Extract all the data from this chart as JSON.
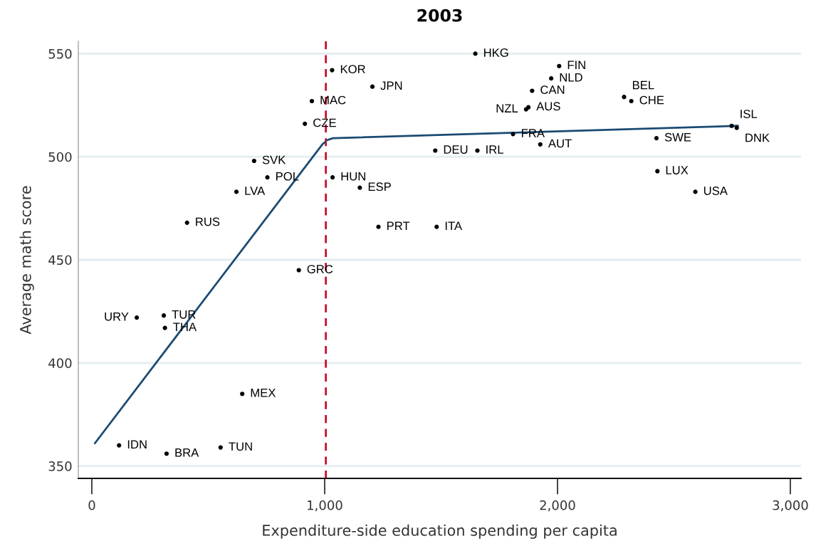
{
  "chart_data": {
    "type": "scatter",
    "title": "2003",
    "xlabel": "Expenditure-side education spending per capita",
    "ylabel": "Average math score",
    "series": [
      {
        "color": "#000000",
        "marker": "circle",
        "x": [
          1647,
          1032,
          2007,
          1973,
          1205,
          1891,
          2286,
          945,
          2317,
          1875,
          1865,
          915,
          2748,
          2770,
          1809,
          2425,
          1926,
          1475,
          1656,
          697,
          2429,
          754,
          1034,
          1151,
          621,
          2592,
          409,
          1231,
          1481,
          889,
          309,
          193,
          314,
          646,
          117,
          553,
          321
        ],
        "values": [
          550,
          542,
          544,
          538,
          534,
          532,
          529,
          527,
          527,
          524,
          523,
          516,
          515,
          514,
          511,
          509,
          506,
          503,
          503,
          498,
          493,
          490,
          490,
          485,
          483,
          483,
          468,
          466,
          466,
          445,
          423,
          422,
          417,
          385,
          360,
          359,
          356
        ]
      },
      {
        "type": "line",
        "color": "#1b4a73",
        "x": [
          13,
          990,
          1000
        ],
        "values": [
          361,
          506,
          507
        ]
      },
      {
        "type": "line",
        "color": "#1b4a73",
        "x": [
          1010,
          1035,
          2775
        ],
        "values": [
          508,
          509,
          515
        ]
      }
    ],
    "annotations": [
      {
        "text": "HKG",
        "x": 1647,
        "y": 550
      },
      {
        "text": "KOR",
        "x": 1032,
        "y": 542
      },
      {
        "text": "FIN",
        "x": 2007,
        "y": 544
      },
      {
        "text": "NLD",
        "x": 1973,
        "y": 538
      },
      {
        "text": "JPN",
        "x": 1205,
        "y": 534
      },
      {
        "text": "CAN",
        "x": 1891,
        "y": 532
      },
      {
        "text": "BEL",
        "x": 2286,
        "y": 529
      },
      {
        "text": "MAC",
        "x": 945,
        "y": 527
      },
      {
        "text": "CHE",
        "x": 2317,
        "y": 527
      },
      {
        "text": "AUS",
        "x": 1875,
        "y": 524
      },
      {
        "text": "NZL",
        "x": 1865,
        "y": 523
      },
      {
        "text": "CZE",
        "x": 915,
        "y": 516
      },
      {
        "text": "ISL",
        "x": 2748,
        "y": 515
      },
      {
        "text": "DNK",
        "x": 2770,
        "y": 514
      },
      {
        "text": "FRA",
        "x": 1809,
        "y": 511
      },
      {
        "text": "SWE",
        "x": 2425,
        "y": 509
      },
      {
        "text": "AUT",
        "x": 1926,
        "y": 506
      },
      {
        "text": "DEU",
        "x": 1475,
        "y": 503
      },
      {
        "text": "IRL",
        "x": 1656,
        "y": 503
      },
      {
        "text": "SVK",
        "x": 697,
        "y": 498
      },
      {
        "text": "LUX",
        "x": 2429,
        "y": 493
      },
      {
        "text": "POL",
        "x": 754,
        "y": 490
      },
      {
        "text": "HUN",
        "x": 1034,
        "y": 490
      },
      {
        "text": "ESP",
        "x": 1151,
        "y": 485
      },
      {
        "text": "LVA",
        "x": 621,
        "y": 483
      },
      {
        "text": "USA",
        "x": 2592,
        "y": 483
      },
      {
        "text": "RUS",
        "x": 409,
        "y": 468
      },
      {
        "text": "PRT",
        "x": 1231,
        "y": 466
      },
      {
        "text": "ITA",
        "x": 1481,
        "y": 466
      },
      {
        "text": "GRC",
        "x": 889,
        "y": 445
      },
      {
        "text": "TUR",
        "x": 309,
        "y": 423
      },
      {
        "text": "URY",
        "x": 193,
        "y": 422
      },
      {
        "text": "THA",
        "x": 314,
        "y": 417
      },
      {
        "text": "MEX",
        "x": 646,
        "y": 385
      },
      {
        "text": "IDN",
        "x": 117,
        "y": 360
      },
      {
        "text": "TUN",
        "x": 553,
        "y": 359
      },
      {
        "text": "BRA",
        "x": 321,
        "y": 356
      }
    ],
    "ref_lines": [
      {
        "axis": "x",
        "value": 1005,
        "color": "#c8102e",
        "line_style": "dashed"
      }
    ],
    "xlim": [
      -58,
      3046
    ],
    "ylim": [
      344,
      556
    ],
    "xticks": [
      0,
      {
        "value": 1000,
        "label": "1,000"
      },
      {
        "value": 2000,
        "label": "2,000"
      },
      {
        "value": 3000,
        "label": "3,000"
      }
    ],
    "yticks": [
      350,
      400,
      450,
      500,
      550
    ],
    "grid": "y"
  }
}
